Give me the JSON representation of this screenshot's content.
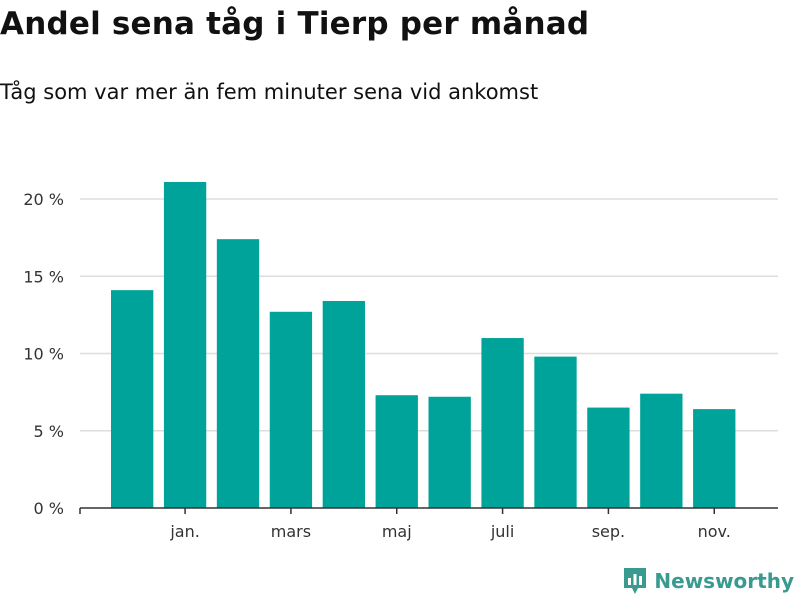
{
  "title": "Andel sena tåg i Tierp per månad",
  "subtitle": "Tåg som var mer än fem minuter sena vid ankomst",
  "colors": {
    "bar": "#00a39a",
    "grid": "#dddddd",
    "axis": "#333333",
    "brand": "#3a9a8f"
  },
  "brand": {
    "name": "Newsworthy",
    "icon": "newsworthy-bar-chart-icon"
  },
  "chart_data": {
    "type": "bar",
    "title": "Andel sena tåg i Tierp per månad",
    "subtitle": "Tåg som var mer än fem minuter sena vid ankomst",
    "xlabel": "",
    "ylabel": "",
    "unit": "%",
    "ylim": [
      0,
      20
    ],
    "yticks": [
      0,
      5,
      10,
      15,
      20
    ],
    "ytick_labels": [
      "0 %",
      "5 %",
      "10 %",
      "15 %",
      "20 %"
    ],
    "grid": true,
    "values": [
      14.1,
      21.1,
      17.4,
      12.7,
      13.4,
      7.3,
      7.2,
      11.0,
      9.8,
      6.5,
      7.4,
      6.4
    ],
    "xtick_labels": [
      {
        "bar_index": 1,
        "label": "jan."
      },
      {
        "bar_index": 3,
        "label": "mars"
      },
      {
        "bar_index": 5,
        "label": "maj"
      },
      {
        "bar_index": 7,
        "label": "juli"
      },
      {
        "bar_index": 9,
        "label": "sep."
      },
      {
        "bar_index": 11,
        "label": "nov."
      }
    ]
  }
}
